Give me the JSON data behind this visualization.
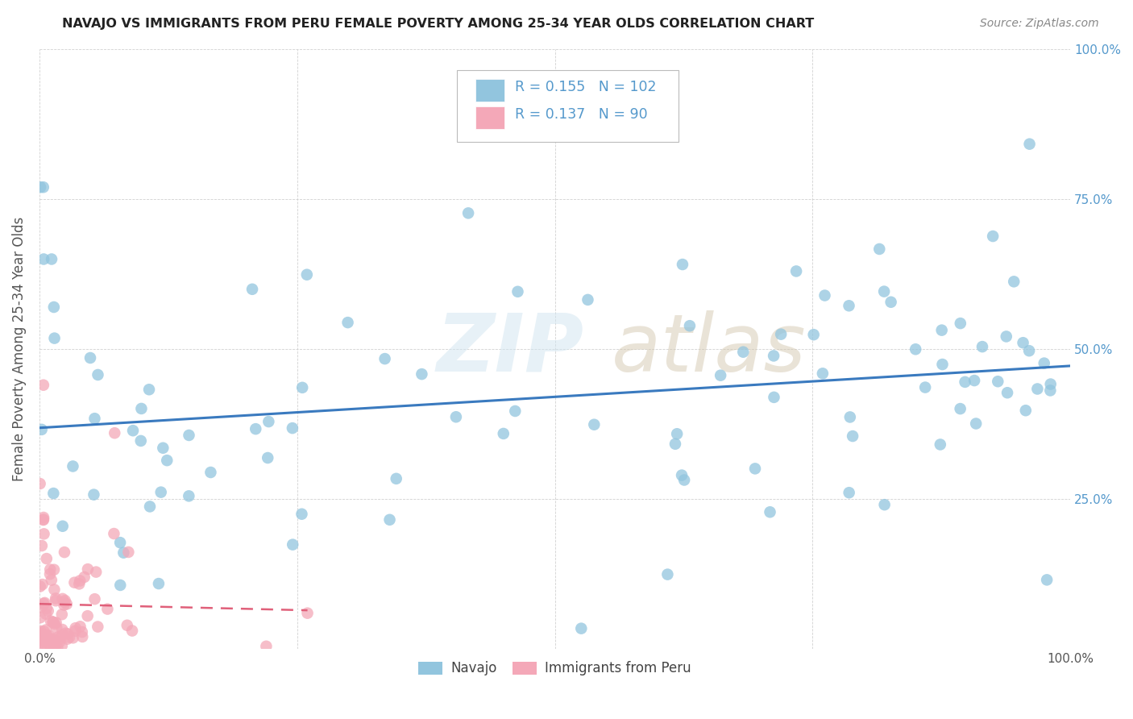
{
  "title": "NAVAJO VS IMMIGRANTS FROM PERU FEMALE POVERTY AMONG 25-34 YEAR OLDS CORRELATION CHART",
  "source": "Source: ZipAtlas.com",
  "ylabel": "Female Poverty Among 25-34 Year Olds",
  "navajo_R": 0.155,
  "navajo_N": 102,
  "peru_R": 0.137,
  "peru_N": 90,
  "navajo_color": "#92c5de",
  "peru_color": "#f4a8b8",
  "navajo_line_color": "#3a7abf",
  "peru_line_color": "#e0607a",
  "legend_navajo_label": "Navajo",
  "legend_peru_label": "Immigrants from Peru",
  "watermark_zip": "ZIP",
  "watermark_atlas": "atlas",
  "tick_color": "#5599cc",
  "ylabel_color": "#555555",
  "title_color": "#222222",
  "source_color": "#888888",
  "grid_color": "#cccccc"
}
